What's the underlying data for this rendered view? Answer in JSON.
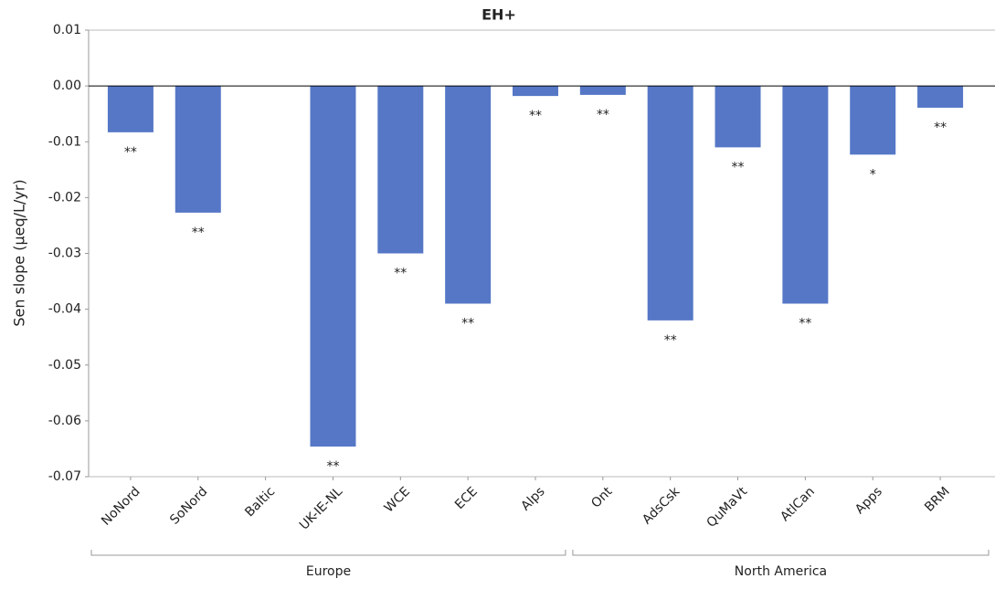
{
  "chart_data": {
    "type": "bar",
    "title": "EH+",
    "y_label": "Sen slope (µeq/L/yr)",
    "categories": [
      "NoNord",
      "SoNord",
      "Baltic",
      "UK-IE-NL",
      "WCE",
      "ECE",
      "Alps",
      "Ont",
      "AdsCsk",
      "QuMaVt",
      "AtlCan",
      "Apps",
      "BRM"
    ],
    "groups": [
      "Europe",
      "Europe",
      "Europe",
      "Europe",
      "Europe",
      "Europe",
      "Europe",
      "North America",
      "North America",
      "North America",
      "North America",
      "North America",
      "North America"
    ],
    "values": [
      -0.0083,
      -0.0227,
      null,
      -0.0646,
      -0.03,
      -0.039,
      -0.0018,
      -0.0016,
      -0.042,
      -0.011,
      -0.039,
      -0.0123,
      -0.0039
    ],
    "annotations": [
      "**",
      "**",
      null,
      "**",
      "**",
      "**",
      "**",
      "**",
      "**",
      "**",
      "**",
      "*",
      "**"
    ],
    "color": "#5577c6",
    "ylim": [
      -0.07,
      0.01
    ],
    "yticks": [
      0.01,
      {
        "value": 0,
        "label": "0.00"
      },
      -0.01,
      -0.02,
      -0.03,
      -0.04,
      -0.05,
      -0.06,
      -0.07
    ]
  }
}
